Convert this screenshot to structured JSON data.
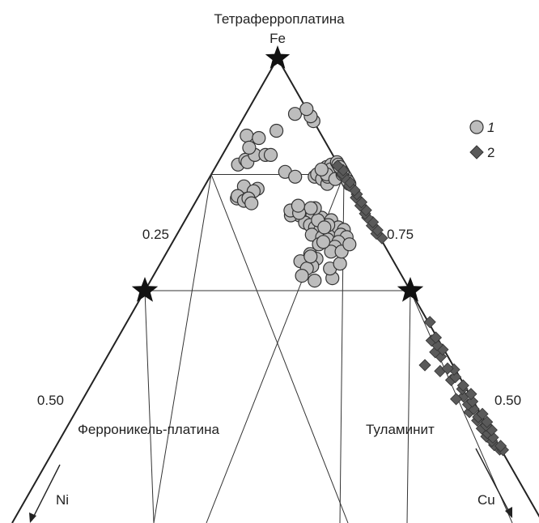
{
  "chart_data": {
    "type": "ternary-scatter",
    "title": "Тетраферроплатина",
    "apex_label": "Fe",
    "left_axis_label": "Ni",
    "right_axis_label": "Cu",
    "ticks": [
      "0.25",
      "0.75",
      "0.50",
      "0.50"
    ],
    "end_members": {
      "top": "Тетраферроплатина",
      "left": "Ферроникель-платина",
      "right": "Туламинит"
    },
    "legend": [
      {
        "symbol": "circle",
        "label": "1"
      },
      {
        "symbol": "diamond",
        "label": "2"
      }
    ],
    "colors": {
      "circle_fill": "#bdbdbd",
      "diamond_fill": "#5a5a5a",
      "stroke": "#333333",
      "line": "#222222"
    },
    "series": [
      {
        "marker": "circle",
        "points": [
          [
            0.32,
            0.0
          ],
          [
            0.33,
            0.06
          ],
          [
            0.3,
            0.14
          ],
          [
            0.23,
            0.26
          ],
          [
            0.26,
            0.37
          ],
          [
            0.24,
            0.4
          ],
          [
            0.21,
            0.42
          ],
          [
            0.44,
            0.01
          ],
          [
            0.42,
            0.03
          ],
          [
            0.43,
            0.04
          ],
          [
            0.4,
            0.06
          ],
          [
            0.37,
            0.03
          ],
          [
            0.4,
            0.1
          ],
          [
            0.4,
            0.12
          ],
          [
            0.65,
            0.03
          ],
          [
            0.66,
            0.05
          ],
          [
            0.67,
            0.05
          ],
          [
            0.68,
            0.07
          ],
          [
            0.65,
            0.06
          ],
          [
            0.66,
            0.08
          ],
          [
            0.67,
            0.1
          ],
          [
            0.68,
            0.04
          ],
          [
            0.69,
            0.05
          ],
          [
            0.7,
            0.06
          ],
          [
            0.71,
            0.07
          ],
          [
            0.72,
            0.08
          ],
          [
            0.73,
            0.05
          ],
          [
            0.72,
            0.1
          ],
          [
            0.74,
            0.07
          ],
          [
            0.75,
            0.08
          ],
          [
            0.7,
            0.11
          ],
          [
            0.71,
            0.12
          ],
          [
            0.73,
            0.11
          ],
          [
            0.74,
            0.12
          ],
          [
            0.76,
            0.1
          ],
          [
            0.77,
            0.06
          ],
          [
            0.78,
            0.09
          ],
          [
            0.8,
            0.08
          ],
          [
            0.81,
            0.04
          ],
          [
            0.84,
            0.02
          ],
          [
            0.83,
            0.05
          ],
          [
            0.86,
            0.04
          ],
          [
            0.87,
            0.03
          ],
          [
            0.9,
            0.02
          ],
          [
            0.92,
            0.04
          ],
          [
            0.91,
            0.07
          ],
          [
            0.87,
            0.07
          ],
          [
            0.85,
            0.09
          ],
          [
            0.8,
            0.1
          ],
          [
            0.77,
            0.12
          ],
          [
            0.76,
            0.07
          ],
          [
            0.69,
            0.09
          ],
          [
            0.67,
            0.07
          ],
          [
            0.7,
            0.08
          ],
          [
            0.47,
            0.17
          ],
          [
            0.49,
            0.2
          ],
          [
            0.49,
            0.26
          ],
          [
            0.45,
            0.31
          ],
          [
            0.48,
            0.32
          ],
          [
            0.44,
            0.33
          ],
          [
            0.48,
            0.27
          ],
          [
            0.49,
            0.32
          ],
          [
            0.5,
            0.28
          ],
          [
            0.52,
            0.29
          ],
          [
            0.46,
            0.32
          ],
          [
            0.43,
            0.38
          ],
          [
            0.44,
            0.42
          ],
          [
            0.5,
            0.4
          ],
          [
            0.48,
            0.38
          ],
          [
            0.46,
            0.41
          ],
          [
            0.47,
            0.44
          ],
          [
            0.49,
            0.43
          ],
          [
            0.51,
            0.39
          ],
          [
            0.5,
            0.44
          ],
          [
            0.52,
            0.47
          ],
          [
            0.49,
            0.45
          ],
          [
            0.46,
            0.37
          ],
          [
            0.45,
            0.36
          ],
          [
            0.47,
            0.35
          ],
          [
            0.49,
            0.3
          ],
          [
            0.48,
            0.3
          ],
          [
            0.46,
            0.29
          ],
          [
            0.5,
            0.32
          ],
          [
            0.48,
            0.35
          ],
          [
            0.47,
            0.39
          ],
          [
            0.45,
            0.39
          ],
          [
            0.51,
            0.36
          ],
          [
            0.54,
            0.09
          ],
          [
            0.58,
            0.04
          ],
          [
            0.53,
            0.05
          ],
          [
            0.57,
            0.04
          ],
          [
            0.55,
            0.08
          ],
          [
            0.59,
            0.06
          ],
          [
            0.62,
            0.07
          ],
          [
            0.62,
            0.06
          ],
          [
            0.65,
            0.01
          ],
          [
            0.63,
            0.01
          ],
          [
            0.64,
            0.03
          ],
          [
            0.61,
            0.03
          ],
          [
            0.58,
            0.07
          ],
          [
            0.6,
            0.08
          ],
          [
            0.82,
            0.04
          ]
        ]
      },
      {
        "marker": "diamond",
        "points": [
          [
            0.98,
            0.01
          ],
          [
            0.98,
            0.0
          ],
          [
            0.97,
            0.02
          ],
          [
            0.96,
            0.02
          ],
          [
            0.97,
            0.0
          ],
          [
            0.95,
            0.03
          ],
          [
            0.95,
            0.01
          ],
          [
            0.94,
            0.02
          ],
          [
            0.93,
            0.03
          ],
          [
            0.93,
            0.0
          ],
          [
            0.92,
            0.01
          ],
          [
            0.91,
            0.03
          ],
          [
            0.9,
            0.02
          ],
          [
            0.89,
            0.04
          ],
          [
            0.91,
            0.0
          ],
          [
            0.88,
            0.02
          ],
          [
            0.89,
            0.0
          ],
          [
            0.87,
            0.03
          ],
          [
            0.86,
            0.01
          ],
          [
            0.85,
            0.03
          ],
          [
            0.84,
            0.0
          ],
          [
            0.86,
            0.06
          ],
          [
            0.83,
            0.02
          ],
          [
            0.81,
            0.04
          ],
          [
            0.82,
            0.01
          ],
          [
            0.8,
            0.02
          ],
          [
            0.79,
            0.06
          ],
          [
            0.78,
            0.01
          ],
          [
            0.78,
            0.03
          ],
          [
            0.75,
            0.03
          ],
          [
            0.74,
            0.04
          ],
          [
            0.73,
            0.01
          ],
          [
            0.72,
            0.02
          ],
          [
            0.71,
            0.03
          ],
          [
            0.7,
            0.01
          ],
          [
            0.78,
            0.1
          ],
          [
            0.66,
            0.0
          ],
          [
            0.45,
            0.0
          ],
          [
            0.44,
            0.01
          ],
          [
            0.43,
            0.0
          ],
          [
            0.42,
            0.01
          ],
          [
            0.41,
            0.0
          ],
          [
            0.4,
            0.01
          ],
          [
            0.39,
            0.01
          ],
          [
            0.38,
            0.0
          ],
          [
            0.37,
            0.01
          ],
          [
            0.36,
            0.0
          ],
          [
            0.35,
            0.01
          ],
          [
            0.34,
            0.0
          ],
          [
            0.33,
            0.0
          ],
          [
            0.32,
            0.01
          ],
          [
            0.31,
            0.0
          ],
          [
            0.3,
            0.01
          ],
          [
            0.29,
            0.01
          ],
          [
            0.28,
            0.0
          ],
          [
            0.27,
            0.01
          ]
        ]
      }
    ]
  }
}
